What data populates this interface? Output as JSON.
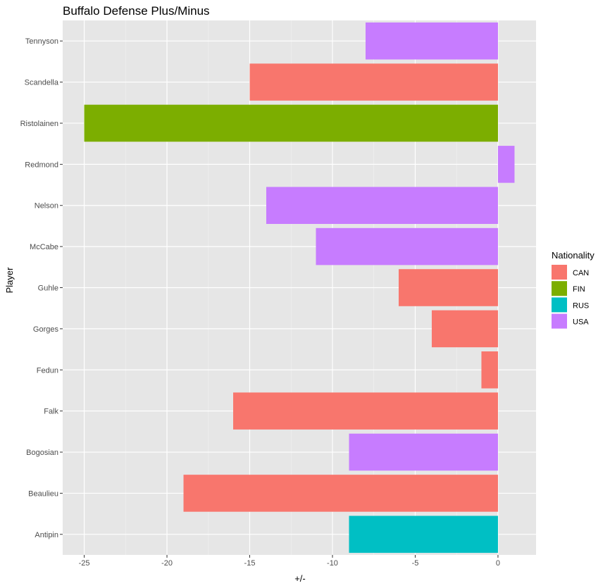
{
  "chart_data": {
    "type": "bar",
    "orientation": "horizontal",
    "title": "Buffalo Defense Plus/Minus",
    "xlabel": "+/-",
    "ylabel": "Player",
    "xlim": [
      -26.3,
      2.3
    ],
    "xticks": [
      -25,
      -20,
      -15,
      -10,
      -5,
      0
    ],
    "grid": true,
    "legend": {
      "title": "Nationality",
      "position": "right",
      "entries": [
        {
          "label": "CAN",
          "color": "#F8766D"
        },
        {
          "label": "FIN",
          "color": "#7CAE00"
        },
        {
          "label": "RUS",
          "color": "#00BFC4"
        },
        {
          "label": "USA",
          "color": "#C77CFF"
        }
      ]
    },
    "categories": [
      "Tennyson",
      "Scandella",
      "Ristolainen",
      "Redmond",
      "Nelson",
      "McCabe",
      "Guhle",
      "Gorges",
      "Fedun",
      "Falk",
      "Bogosian",
      "Beaulieu",
      "Antipin"
    ],
    "values": [
      -8,
      -15,
      -25,
      1,
      -14,
      -11,
      -6,
      -4,
      -1,
      -16,
      -9,
      -19,
      -9
    ],
    "groups": [
      "USA",
      "CAN",
      "FIN",
      "USA",
      "USA",
      "USA",
      "CAN",
      "CAN",
      "CAN",
      "CAN",
      "USA",
      "CAN",
      "RUS"
    ]
  }
}
